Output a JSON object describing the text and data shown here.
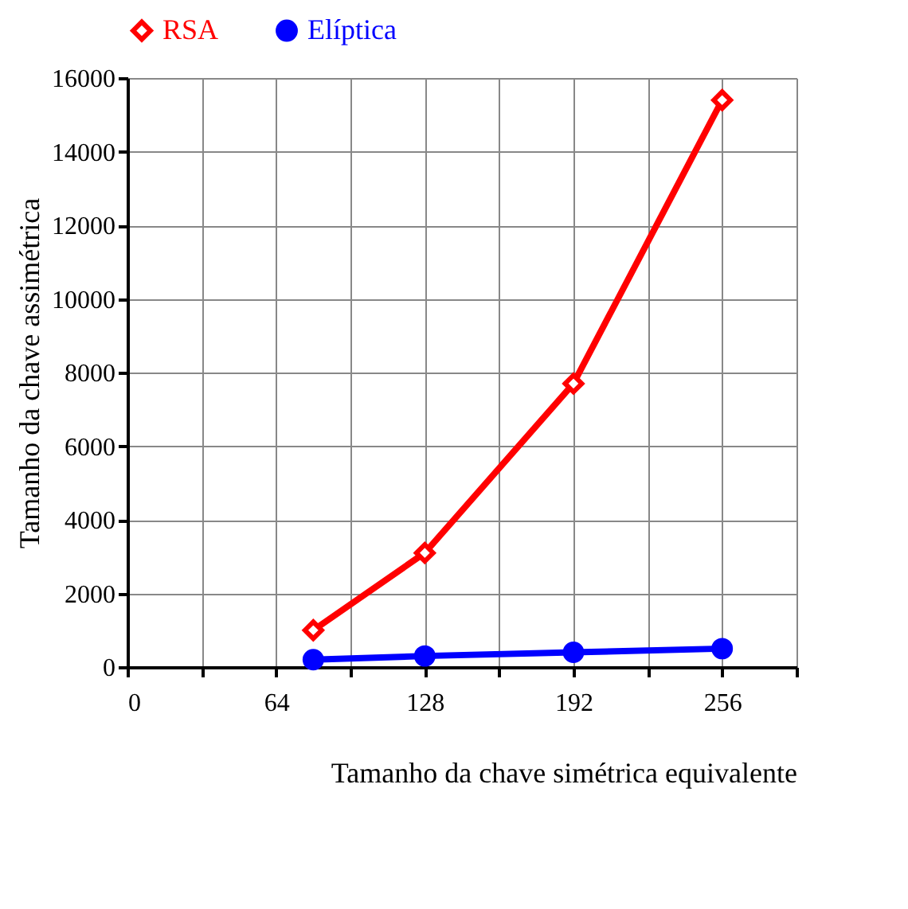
{
  "chart_data": {
    "type": "line",
    "xlabel": "Tamanho da chave simétrica equivalente",
    "ylabel": "Tamanho da chave assimétrica",
    "x": [
      80,
      128,
      192,
      256
    ],
    "series": [
      {
        "name": "RSA",
        "color": "#ff0000",
        "marker": "diamond",
        "values": [
          1000,
          3100,
          7700,
          15400
        ]
      },
      {
        "name": "Elíptica",
        "color": "#0000ff",
        "marker": "circle",
        "values": [
          200,
          300,
          400,
          500
        ]
      }
    ],
    "xlim": [
      0,
      288
    ],
    "xticks": [
      0,
      {
        "value": 32,
        "label": null
      },
      64,
      {
        "value": 96,
        "label": null
      },
      128,
      {
        "value": 160,
        "label": null
      },
      192,
      {
        "value": 224,
        "label": null
      },
      256,
      {
        "value": 288,
        "label": null
      }
    ],
    "ylim": [
      0,
      16000
    ],
    "yticks": [
      0,
      2000,
      4000,
      6000,
      8000,
      10000,
      12000,
      14000,
      16000
    ],
    "grid": true,
    "legend": "top"
  }
}
